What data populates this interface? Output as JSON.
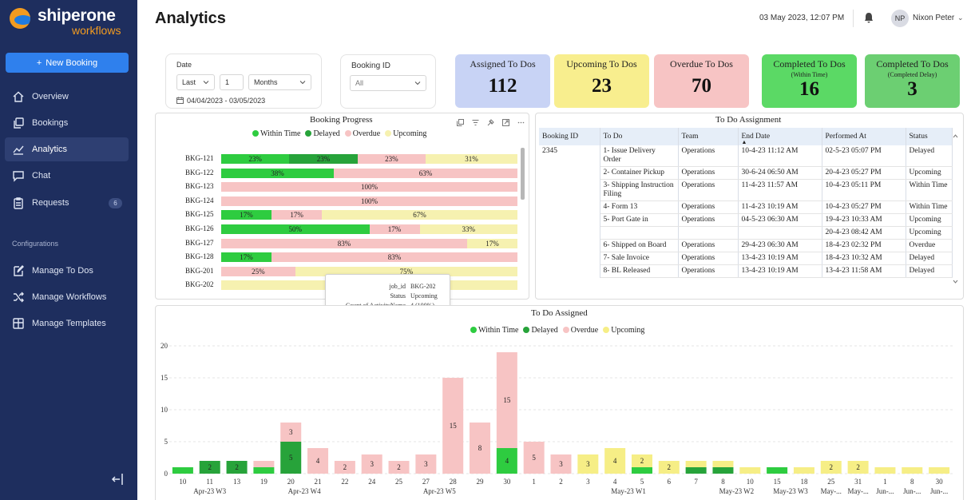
{
  "brand": {
    "name": "shiperone",
    "sub": "workflows"
  },
  "sidebar": {
    "new_booking": "New Booking",
    "items": [
      {
        "label": "Overview",
        "icon": "home-icon"
      },
      {
        "label": "Bookings",
        "icon": "copy-icon"
      },
      {
        "label": "Analytics",
        "icon": "chart-icon"
      },
      {
        "label": "Chat",
        "icon": "chat-icon"
      },
      {
        "label": "Requests",
        "icon": "clipboard-icon",
        "badge": "6"
      }
    ],
    "section": "Configurations",
    "config_items": [
      {
        "label": "Manage To Dos",
        "icon": "edit-icon"
      },
      {
        "label": "Manage Workflows",
        "icon": "shuffle-icon"
      },
      {
        "label": "Manage Templates",
        "icon": "grid-icon"
      }
    ]
  },
  "header": {
    "title": "Analytics",
    "datetime": "03 May 2023, 12:07 PM",
    "initials": "NP",
    "user": "Nixon Peter"
  },
  "filters": {
    "date_label": "Date",
    "period": "Last",
    "count": "1",
    "unit": "Months",
    "range": "04/04/2023 - 03/05/2023",
    "booking_label": "Booking ID",
    "booking_value": "All"
  },
  "kpis": [
    {
      "title": "Assigned To Dos",
      "sub": "",
      "value": "112",
      "color": "#c8d3f5"
    },
    {
      "title": "Upcoming To Dos",
      "sub": "",
      "value": "23",
      "color": "#f8ee8e"
    },
    {
      "title": "Overdue To Dos",
      "sub": "",
      "value": "70",
      "color": "#f7c4c4"
    },
    {
      "title": "Completed To Dos",
      "sub": "(Within Time)",
      "value": "16",
      "color": "#5bd965"
    },
    {
      "title": "Completed To Dos",
      "sub": "(Completed Delay)",
      "value": "3",
      "color": "#6ccf72"
    }
  ],
  "colors": {
    "within": "#2ecc40",
    "delayed": "#27a33a",
    "overdue": "#f7c4c4",
    "upcoming": "#f6f1b0"
  },
  "legend": [
    "Within Time",
    "Delayed",
    "Overdue",
    "Upcoming"
  ],
  "booking_progress": {
    "title": "Booking Progress",
    "rows": [
      {
        "id": "BKG-121",
        "segs": [
          [
            "within",
            23,
            "23%"
          ],
          [
            "delayed",
            23,
            "23%"
          ],
          [
            "overdue",
            23,
            "23%"
          ],
          [
            "upcoming",
            31,
            "31%"
          ]
        ]
      },
      {
        "id": "BKG-122",
        "segs": [
          [
            "within",
            38,
            "38%"
          ],
          [
            "overdue",
            62,
            "63%"
          ]
        ]
      },
      {
        "id": "BKG-123",
        "segs": [
          [
            "overdue",
            100,
            "100%"
          ]
        ]
      },
      {
        "id": "BKG-124",
        "segs": [
          [
            "overdue",
            100,
            "100%"
          ]
        ]
      },
      {
        "id": "BKG-125",
        "segs": [
          [
            "within",
            17,
            "17%"
          ],
          [
            "overdue",
            17,
            "17%"
          ],
          [
            "upcoming",
            66,
            "67%"
          ]
        ]
      },
      {
        "id": "BKG-126",
        "segs": [
          [
            "within",
            50,
            "50%"
          ],
          [
            "overdue",
            17,
            "17%"
          ],
          [
            "upcoming",
            33,
            "33%"
          ]
        ]
      },
      {
        "id": "BKG-127",
        "segs": [
          [
            "overdue",
            83,
            "83%"
          ],
          [
            "upcoming",
            17,
            "17%"
          ]
        ]
      },
      {
        "id": "BKG-128",
        "segs": [
          [
            "within",
            17,
            "17%"
          ],
          [
            "overdue",
            83,
            "83%"
          ]
        ]
      },
      {
        "id": "BKG-201",
        "segs": [
          [
            "overdue",
            25,
            "25%"
          ],
          [
            "upcoming",
            75,
            "75%"
          ]
        ]
      },
      {
        "id": "BKG-202",
        "segs": [
          [
            "upcoming",
            100,
            ""
          ]
        ]
      }
    ],
    "tooltip": [
      {
        "k": "job_id",
        "v": "BKG-202"
      },
      {
        "k": "Status",
        "v": "Upcoming"
      },
      {
        "k": "Count of ActivityName",
        "v": "4 (100%)"
      }
    ]
  },
  "todo_table": {
    "title": "To Do Assignment",
    "headers": [
      "Booking ID",
      "To Do",
      "Team",
      "End Date",
      "Performed At",
      "Status"
    ],
    "rows": [
      [
        "2345",
        "1- Issue Delivery Order",
        "Operations",
        "10-4-23 11:12 AM",
        "02-5-23 05:07 PM",
        "Delayed"
      ],
      [
        "",
        "2- Container Pickup",
        "Operations",
        "30-6-24 06:50 AM",
        "20-4-23 05:27 PM",
        "Upcoming"
      ],
      [
        "",
        "3- Shipping Instruction Filing",
        "Operations",
        "11-4-23 11:57 AM",
        "10-4-23 05:11 PM",
        "Within Time"
      ],
      [
        "",
        "4- Form 13",
        "Operations",
        "11-4-23 10:19 AM",
        "10-4-23 05:27 PM",
        "Within Time"
      ],
      [
        "",
        "5- Port Gate in",
        "Operations",
        "04-5-23 06:30 AM",
        "19-4-23 10:33 AM",
        "Upcoming"
      ],
      [
        "",
        "",
        "",
        "",
        "20-4-23 08:42 AM",
        "Upcoming"
      ],
      [
        "",
        "6- Shipped on Board",
        "Operations",
        "29-4-23 06:30 AM",
        "18-4-23 02:32 PM",
        "Overdue"
      ],
      [
        "",
        "7- Sale Invoice",
        "Operations",
        "13-4-23 10:19 AM",
        "18-4-23 10:32 AM",
        "Delayed"
      ],
      [
        "",
        "8- BL Released",
        "Operations",
        "13-4-23 10:19 AM",
        "13-4-23 11:58 AM",
        "Delayed"
      ]
    ]
  },
  "chart_data": {
    "type": "bar",
    "title": "To Do Assigned",
    "stacked": true,
    "ylim": [
      0,
      20
    ],
    "yticks": [
      0,
      5,
      10,
      15,
      20
    ],
    "legend_position": "top-center",
    "categories": [
      "10",
      "11",
      "13",
      "19",
      "20",
      "21",
      "22",
      "24",
      "25",
      "27",
      "28",
      "29",
      "30",
      "1",
      "2",
      "3",
      "4",
      "5",
      "6",
      "7",
      "8",
      "10",
      "15",
      "18",
      "25",
      "31",
      "1",
      "8",
      "30"
    ],
    "groups": [
      {
        "label": "Apr-23 W3",
        "from": 0,
        "to": 2
      },
      {
        "label": "Apr-23 W4",
        "from": 3,
        "to": 6
      },
      {
        "label": "Apr-23 W5",
        "from": 7,
        "to": 12
      },
      {
        "label": "May-23 W1",
        "from": 13,
        "to": 20
      },
      {
        "label": "May-23 W2",
        "from": 20,
        "to": 21
      },
      {
        "label": "May-23 W3",
        "from": 22,
        "to": 23
      },
      {
        "label": "May-...",
        "from": 24,
        "to": 24
      },
      {
        "label": "May-...",
        "from": 25,
        "to": 25
      },
      {
        "label": "Jun-...",
        "from": 26,
        "to": 26
      },
      {
        "label": "Jun-...",
        "from": 27,
        "to": 27
      },
      {
        "label": "Jun-...",
        "from": 28,
        "to": 28
      }
    ],
    "series": [
      {
        "name": "Within Time",
        "values": [
          1,
          0,
          0,
          1,
          0,
          0,
          0,
          0,
          0,
          0,
          0,
          0,
          4,
          0,
          0,
          0,
          0,
          1,
          0,
          0,
          0,
          0,
          1,
          0,
          0,
          0,
          0,
          0,
          0
        ]
      },
      {
        "name": "Delayed",
        "values": [
          0,
          2,
          2,
          0,
          5,
          0,
          0,
          0,
          0,
          0,
          0,
          0,
          0,
          0,
          0,
          0,
          0,
          0,
          0,
          1,
          1,
          0,
          0,
          0,
          0,
          0,
          0,
          0,
          0
        ]
      },
      {
        "name": "Overdue",
        "values": [
          0,
          0,
          0,
          1,
          3,
          4,
          2,
          3,
          2,
          3,
          15,
          8,
          15,
          5,
          3,
          0,
          0,
          0,
          0,
          0,
          0,
          0,
          0,
          0,
          0,
          0,
          0,
          0,
          0
        ]
      },
      {
        "name": "Upcoming",
        "values": [
          0,
          0,
          0,
          0,
          0,
          0,
          0,
          0,
          0,
          0,
          0,
          0,
          0,
          0,
          0,
          3,
          4,
          2,
          2,
          1,
          1,
          1,
          0,
          1,
          2,
          2,
          1,
          1,
          1
        ]
      }
    ],
    "labels": {
      "Delayed": {
        "1": "2",
        "2": "2",
        "4": "5"
      },
      "Overdue": {
        "4": "3",
        "5": "4",
        "6": "2",
        "7": "3",
        "8": "2",
        "9": "3",
        "10": "15",
        "11": "8",
        "12": "15",
        "13": "5",
        "14": "3"
      },
      "Within Time": {
        "12": "4"
      },
      "Upcoming": {
        "15": "3",
        "16": "4",
        "17": "2",
        "18": "2",
        "24": "2",
        "25": "2"
      }
    }
  }
}
